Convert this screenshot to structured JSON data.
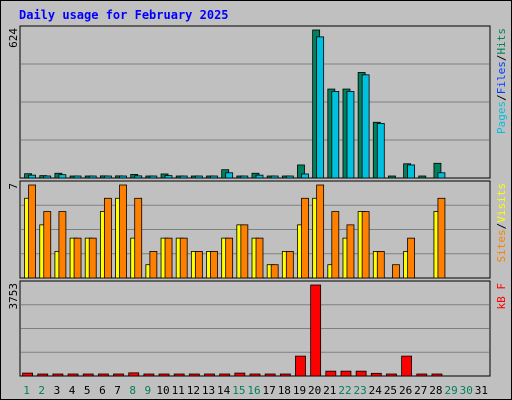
{
  "title": "Daily usage for February 2025",
  "colors": {
    "pages": "#00c0e0",
    "files": "#0040ff",
    "hits": "#00805c",
    "sites": "#ff8000",
    "visits": "#ffff00",
    "kbytes": "#ff0000",
    "weekday_label": "#000000",
    "weekend_label": "#00805c"
  },
  "chart_data": [
    {
      "type": "bar",
      "name": "hits-files-pages",
      "x": [
        1,
        2,
        3,
        4,
        5,
        6,
        7,
        8,
        9,
        10,
        11,
        12,
        13,
        14,
        15,
        16,
        17,
        18,
        19,
        20,
        21,
        22,
        23,
        24,
        25,
        26,
        27,
        28,
        29,
        30,
        31
      ],
      "ymax_label": "624",
      "ymax": 624,
      "legend": [
        "Pages",
        "/",
        "Files",
        "/",
        "Hits"
      ],
      "series": [
        {
          "name": "Hits",
          "values": [
            18,
            10,
            20,
            8,
            8,
            9,
            9,
            15,
            8,
            17,
            6,
            5,
            5,
            35,
            7,
            20,
            6,
            5,
            55,
            624,
            375,
            375,
            445,
            235,
            5,
            60,
            5,
            62,
            0,
            0,
            0
          ]
        },
        {
          "name": "Pages",
          "values": [
            12,
            6,
            14,
            5,
            5,
            5,
            5,
            9,
            5,
            10,
            3,
            3,
            3,
            22,
            4,
            12,
            3,
            3,
            17,
            595,
            365,
            365,
            435,
            230,
            0,
            55,
            0,
            22,
            0,
            0,
            0
          ]
        }
      ]
    },
    {
      "type": "bar",
      "name": "visits-sites",
      "x": [
        1,
        2,
        3,
        4,
        5,
        6,
        7,
        8,
        9,
        10,
        11,
        12,
        13,
        14,
        15,
        16,
        17,
        18,
        19,
        20,
        21,
        22,
        23,
        24,
        25,
        26,
        27,
        28,
        29,
        30,
        31
      ],
      "ymax_label": "7",
      "ymax": 7,
      "legend": [
        "Sites",
        "/",
        "Visits"
      ],
      "series": [
        {
          "name": "Visits",
          "values": [
            6,
            4,
            2,
            3,
            3,
            5,
            6,
            3,
            1,
            3,
            3,
            2,
            2,
            3,
            4,
            3,
            1,
            2,
            4,
            6,
            1,
            3,
            5,
            2,
            0,
            2,
            0,
            5,
            0,
            0,
            0
          ]
        },
        {
          "name": "Sites",
          "values": [
            7,
            5,
            5,
            3,
            3,
            6,
            7,
            6,
            2,
            3,
            3,
            2,
            2,
            3,
            4,
            3,
            1,
            2,
            6,
            7,
            5,
            4,
            5,
            2,
            1,
            3,
            0,
            6,
            0,
            0,
            0
          ]
        }
      ]
    },
    {
      "type": "bar",
      "name": "kbytes",
      "x": [
        1,
        2,
        3,
        4,
        5,
        6,
        7,
        8,
        9,
        10,
        11,
        12,
        13,
        14,
        15,
        16,
        17,
        18,
        19,
        20,
        21,
        22,
        23,
        24,
        25,
        26,
        27,
        28,
        29,
        30,
        31
      ],
      "ymax_label": "3753",
      "ymax": 3753,
      "legend": [
        "kB F"
      ],
      "series": [
        {
          "name": "kB F",
          "values": [
            120,
            60,
            60,
            60,
            60,
            60,
            60,
            130,
            60,
            60,
            60,
            60,
            60,
            60,
            120,
            60,
            60,
            60,
            820,
            3753,
            200,
            200,
            200,
            110,
            50,
            820,
            50,
            60,
            0,
            0,
            0
          ]
        }
      ]
    }
  ],
  "x_labels": [
    "1",
    "2",
    "3",
    "4",
    "5",
    "6",
    "7",
    "8",
    "9",
    "10",
    "11",
    "12",
    "13",
    "14",
    "15",
    "16",
    "17",
    "18",
    "19",
    "20",
    "21",
    "22",
    "23",
    "24",
    "25",
    "26",
    "27",
    "28",
    "29",
    "30",
    "31"
  ],
  "weekend_days": [
    1,
    2,
    8,
    9,
    15,
    16,
    22,
    23,
    29,
    30
  ]
}
